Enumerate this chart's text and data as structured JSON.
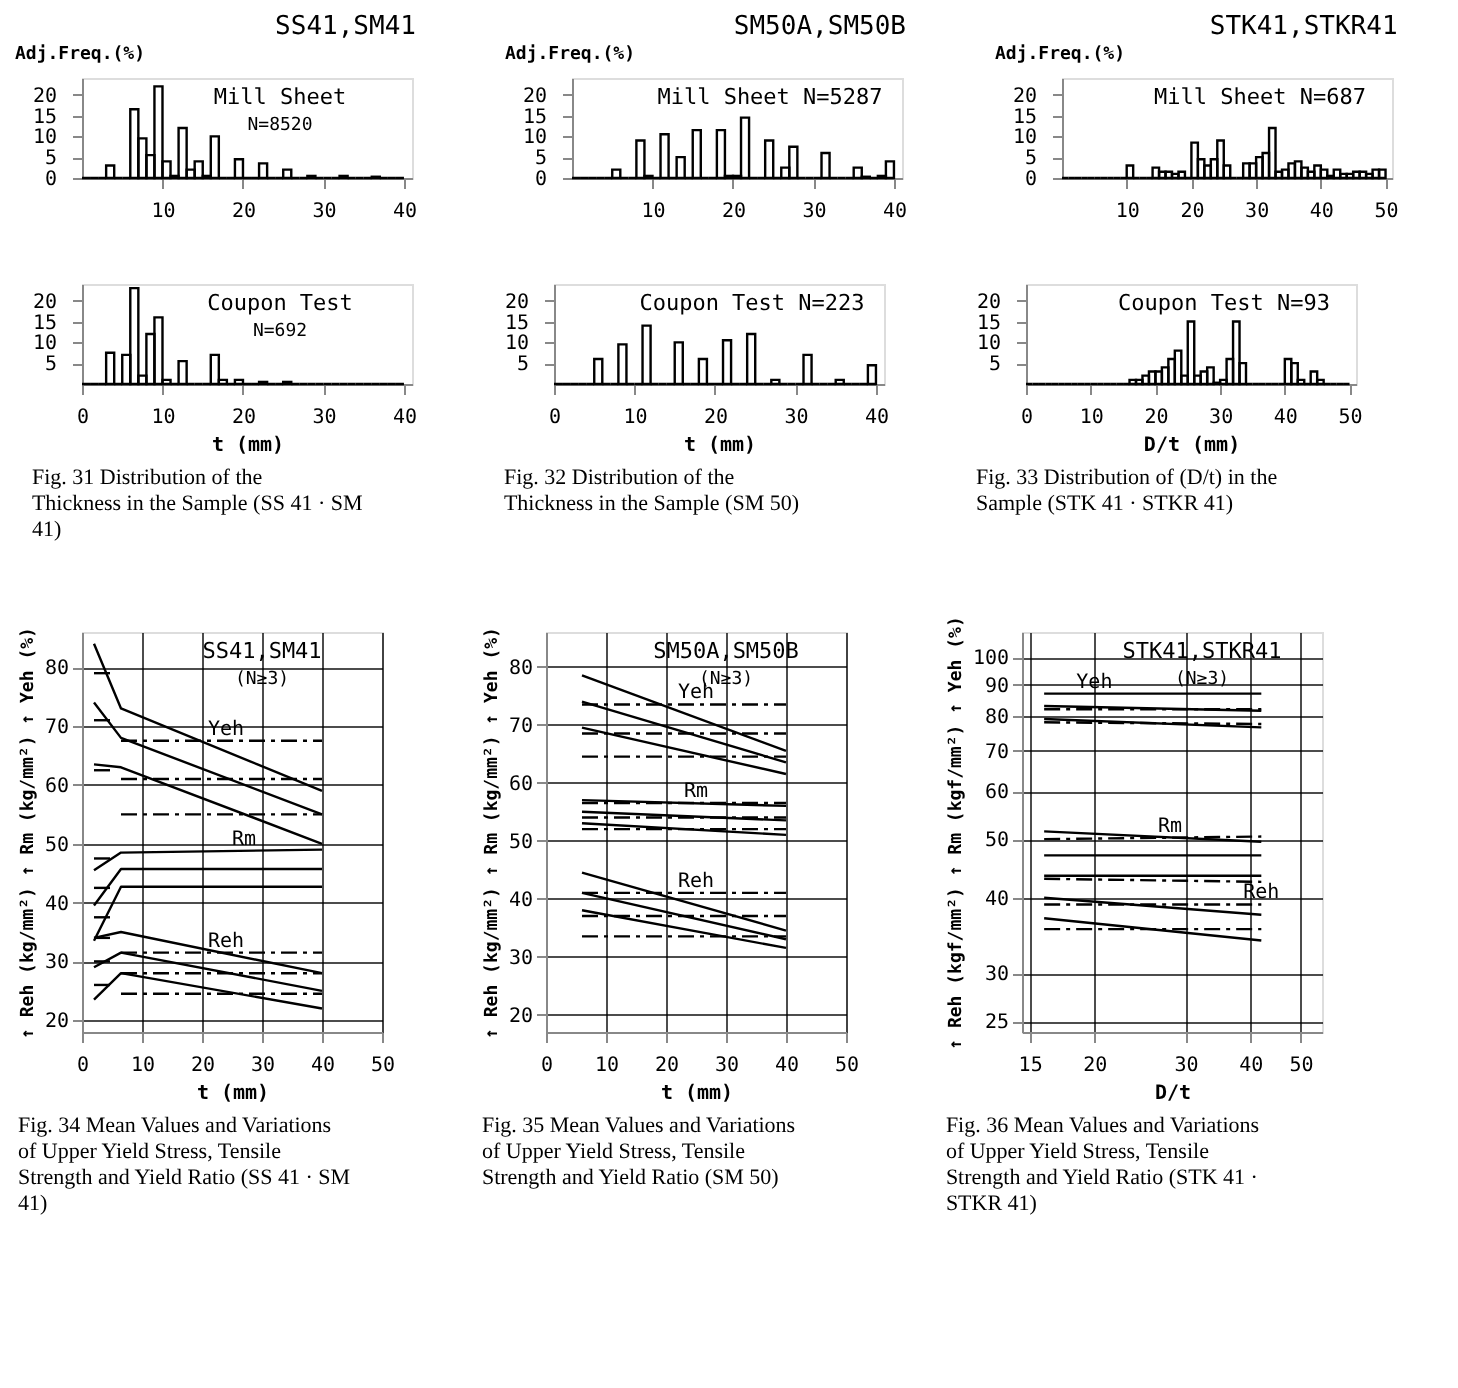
{
  "chart_data": [
    {
      "type": "histogram",
      "title": "SS41,SM41",
      "ylabel": "Adj.Freq.(%)",
      "annotations": [
        "Mill Sheet",
        "N=8520"
      ],
      "bins": [
        0,
        1,
        2,
        3,
        4,
        5,
        6,
        7,
        8,
        9,
        10,
        11,
        12,
        13,
        14,
        15,
        16,
        17,
        18,
        19,
        20,
        21,
        22,
        23,
        24,
        25,
        26,
        27,
        28,
        29,
        30,
        31,
        32,
        33,
        34,
        35,
        36,
        37,
        38,
        39,
        40
      ],
      "values": [
        0,
        0,
        0,
        3,
        0,
        0,
        16.5,
        9.5,
        5.5,
        22,
        4,
        0.5,
        12,
        2,
        4,
        0.5,
        10,
        0,
        0,
        4.5,
        0,
        0,
        3.5,
        0,
        0,
        2,
        0,
        0,
        0.5,
        0,
        0,
        0,
        0.5,
        0,
        0,
        0,
        0.3,
        0,
        0,
        0
      ],
      "color": "#000000",
      "xlim": [
        0,
        41
      ],
      "xticks": [
        10,
        20,
        30,
        40
      ],
      "ylim": [
        0,
        24
      ],
      "yticks": [
        0,
        5,
        10,
        15,
        20
      ],
      "grid": false
    },
    {
      "type": "histogram",
      "title": "SM50A,SM50B",
      "ylabel": "Adj.Freq.(%)",
      "annotations": [
        "Mill Sheet N=5287"
      ],
      "bins": [
        0,
        1,
        2,
        3,
        4,
        5,
        6,
        7,
        8,
        9,
        10,
        11,
        12,
        13,
        14,
        15,
        16,
        17,
        18,
        19,
        20,
        21,
        22,
        23,
        24,
        25,
        26,
        27,
        28,
        29,
        30,
        31,
        32,
        33,
        34,
        35,
        36,
        37,
        38,
        39,
        40
      ],
      "values": [
        0,
        0,
        0,
        0,
        0,
        2,
        0,
        0,
        9,
        0.5,
        0,
        10.5,
        0,
        5,
        0,
        11.5,
        0,
        0,
        11.5,
        0.5,
        0.5,
        14.5,
        0,
        0,
        9,
        0,
        2.5,
        7.5,
        0,
        0,
        0,
        6,
        0,
        0,
        0,
        2.5,
        0.3,
        0,
        0.5,
        4
      ],
      "color": "#000000",
      "xlim": [
        0,
        41
      ],
      "xticks": [
        10,
        20,
        30,
        40
      ],
      "ylim": [
        0,
        24
      ],
      "yticks": [
        0,
        5,
        10,
        15,
        20
      ],
      "grid": false
    },
    {
      "type": "histogram",
      "title": "STK41,STKR41",
      "ylabel": "Adj.Freq.(%)",
      "annotations": [
        "Mill Sheet N=687"
      ],
      "bins": [
        0,
        1,
        2,
        3,
        4,
        5,
        6,
        7,
        8,
        9,
        10,
        11,
        12,
        13,
        14,
        15,
        16,
        17,
        18,
        19,
        20,
        21,
        22,
        23,
        24,
        25,
        26,
        27,
        28,
        29,
        30,
        31,
        32,
        33,
        34,
        35,
        36,
        37,
        38,
        39,
        40,
        41,
        42,
        43,
        44,
        45,
        46,
        47,
        48,
        49,
        50
      ],
      "values": [
        0,
        0,
        0,
        0,
        0,
        0,
        0,
        0,
        0,
        0,
        3,
        0,
        0,
        0,
        2.5,
        1.5,
        1.5,
        1,
        1.5,
        0,
        8.5,
        4.5,
        3,
        4.5,
        9,
        3,
        0,
        0,
        3.5,
        3.5,
        5,
        6,
        12,
        1.5,
        2,
        3.5,
        4,
        2.5,
        1.5,
        3,
        2,
        0.5,
        2,
        1,
        1,
        1.5,
        1.5,
        1,
        2,
        2
      ],
      "color": "#000000",
      "xlim": [
        0,
        51
      ],
      "xticks": [
        10,
        20,
        30,
        40,
        50
      ],
      "ylim": [
        0,
        24
      ],
      "yticks": [
        0,
        5,
        10,
        15,
        20
      ],
      "grid": false
    },
    {
      "type": "histogram",
      "title": "Fig. 31 Distribution of the Thickness in the Sample (SS 41 · SM 41)",
      "xlabel": "t (mm)",
      "annotations": [
        "Coupon Test",
        "N=692"
      ],
      "bins": [
        0,
        1,
        2,
        3,
        4,
        5,
        6,
        7,
        8,
        9,
        10,
        11,
        12,
        13,
        14,
        15,
        16,
        17,
        18,
        19,
        20,
        21,
        22,
        23,
        24,
        25,
        26,
        27,
        28,
        29,
        30,
        31,
        32,
        33,
        34,
        35,
        36,
        37,
        38,
        39,
        40
      ],
      "values": [
        0,
        0,
        0,
        7.5,
        0,
        7,
        23,
        2,
        12,
        16,
        1,
        0,
        5.5,
        0,
        0,
        0,
        7,
        1,
        0,
        1,
        0,
        0,
        0.5,
        0,
        0,
        0.5,
        0,
        0,
        0,
        0,
        0,
        0,
        0,
        0,
        0,
        0,
        0,
        0,
        0,
        0
      ],
      "color": "#000000",
      "xlim": [
        0,
        41
      ],
      "xticks": [
        0,
        10,
        20,
        30,
        40
      ],
      "ylim": [
        0,
        24
      ],
      "yticks": [
        5,
        10,
        15,
        20
      ],
      "grid": false
    },
    {
      "type": "histogram",
      "title": "Fig. 32 Distribution of the Thickness in the Sample (SM 50)",
      "xlabel": "t (mm)",
      "annotations": [
        "Coupon Test N=223"
      ],
      "bins": [
        0,
        1,
        2,
        3,
        4,
        5,
        6,
        7,
        8,
        9,
        10,
        11,
        12,
        13,
        14,
        15,
        16,
        17,
        18,
        19,
        20,
        21,
        22,
        23,
        24,
        25,
        26,
        27,
        28,
        29,
        30,
        31,
        32,
        33,
        34,
        35,
        36,
        37,
        38,
        39,
        40
      ],
      "values": [
        0,
        0,
        0,
        0,
        0,
        6,
        0,
        0,
        9.5,
        0,
        0,
        14,
        0,
        0,
        0,
        10,
        0,
        0,
        6,
        0,
        0,
        10.5,
        0,
        0,
        12,
        0,
        0,
        1,
        0,
        0,
        0,
        7,
        0,
        0,
        0,
        1,
        0,
        0,
        0,
        4.5
      ],
      "color": "#000000",
      "xlim": [
        0,
        41
      ],
      "xticks": [
        0,
        10,
        20,
        30,
        40
      ],
      "ylim": [
        0,
        24
      ],
      "yticks": [
        5,
        10,
        15,
        20
      ],
      "grid": false
    },
    {
      "type": "histogram",
      "title": "Fig. 33 Distribution of (D/t) in the Sample (STK 41 · STKR 41)",
      "xlabel": "D/t (mm)",
      "annotations": [
        "Coupon Test N=93"
      ],
      "bins": [
        0,
        1,
        2,
        3,
        4,
        5,
        6,
        7,
        8,
        9,
        10,
        11,
        12,
        13,
        14,
        15,
        16,
        17,
        18,
        19,
        20,
        21,
        22,
        23,
        24,
        25,
        26,
        27,
        28,
        29,
        30,
        31,
        32,
        33,
        34,
        35,
        36,
        37,
        38,
        39,
        40,
        41,
        42,
        43,
        44,
        45,
        46,
        47,
        48,
        49,
        50
      ],
      "values": [
        0,
        0,
        0,
        0,
        0,
        0,
        0,
        0,
        0,
        0,
        0,
        0,
        0,
        0,
        0,
        0,
        1,
        1,
        2,
        3,
        3,
        4,
        6,
        8,
        2,
        15,
        2,
        3,
        4,
        0.3,
        1,
        6,
        15,
        5,
        0,
        0,
        0,
        0,
        0,
        0,
        6,
        5,
        1,
        0,
        3,
        1,
        0,
        0,
        0,
        0
      ],
      "color": "#000000",
      "xlim": [
        0,
        51
      ],
      "xticks": [
        0,
        10,
        20,
        30,
        40,
        50
      ],
      "ylim": [
        0,
        24
      ],
      "yticks": [
        5,
        10,
        15,
        20
      ],
      "grid": false
    },
    {
      "type": "line",
      "title": "Fig. 34 Mean Values and Variations of Upper Yield Stress, Tensile Strength and Yield Ratio (SS 41 · SM 41)",
      "xlabel": "t (mm)",
      "ylabel": "↑ Reh (kg/mm²)  ↑ Rm (kg/mm²)  ↑ Yeh (%)",
      "annotations": [
        "SS41,SM41",
        "(N≥3)",
        {
          "text": "Yeh",
          "x": 24,
          "y": 67.5
        },
        {
          "text": "Rm",
          "x": 27,
          "y": 48.8
        },
        {
          "text": "Reh",
          "x": 24,
          "y": 31.5
        }
      ],
      "xlim": [
        0,
        50
      ],
      "xticks": [
        0,
        10,
        20,
        30,
        40,
        50
      ],
      "ylim": [
        18,
        86
      ],
      "yticks": [
        20,
        30,
        40,
        50,
        60,
        70,
        80
      ],
      "grid": true,
      "series": [
        {
          "x": [
            2,
            6.5,
            40
          ],
          "values": [
            84,
            73,
            59
          ],
          "color": "#000000",
          "line_style": "solid"
        },
        {
          "x": [
            2,
            6.5,
            40
          ],
          "values": [
            74,
            68,
            55
          ],
          "color": "#000000",
          "line_style": "solid"
        },
        {
          "x": [
            2,
            6.5,
            40
          ],
          "values": [
            63.5,
            63,
            50
          ],
          "color": "#000000",
          "line_style": "solid"
        },
        {
          "x": [
            2,
            5
          ],
          "values": [
            79,
            79
          ],
          "color": "#000000",
          "line_style": "dashed"
        },
        {
          "x": [
            2,
            5
          ],
          "values": [
            71,
            71
          ],
          "color": "#000000",
          "line_style": "dashed"
        },
        {
          "x": [
            2,
            5
          ],
          "values": [
            62.5,
            62.5
          ],
          "color": "#000000",
          "line_style": "dashed"
        },
        {
          "x": [
            6.5,
            40
          ],
          "values": [
            67.5,
            67.5
          ],
          "color": "#000000",
          "line_style": "dashed"
        },
        {
          "x": [
            6.5,
            40
          ],
          "values": [
            61,
            61
          ],
          "color": "#000000",
          "line_style": "dashed"
        },
        {
          "x": [
            6.5,
            40
          ],
          "values": [
            55,
            55
          ],
          "color": "#000000",
          "line_style": "dashed"
        },
        {
          "x": [
            2,
            6.5,
            40
          ],
          "values": [
            45.5,
            48.5,
            49
          ],
          "color": "#000000",
          "line_style": "solid"
        },
        {
          "x": [
            2,
            6.5,
            40
          ],
          "values": [
            39.5,
            45.7,
            45.7
          ],
          "color": "#000000",
          "line_style": "solid"
        },
        {
          "x": [
            2,
            6.5,
            40
          ],
          "values": [
            33.5,
            42.7,
            42.7
          ],
          "color": "#000000",
          "line_style": "solid"
        },
        {
          "x": [
            2,
            5
          ],
          "values": [
            47.5,
            47.5
          ],
          "color": "#000000",
          "line_style": "dashed"
        },
        {
          "x": [
            2,
            5
          ],
          "values": [
            42.5,
            42.5
          ],
          "color": "#000000",
          "line_style": "dashed"
        },
        {
          "x": [
            2,
            5
          ],
          "values": [
            37.5,
            37.5
          ],
          "color": "#000000",
          "line_style": "dashed"
        },
        {
          "x": [
            2,
            6.5,
            40
          ],
          "values": [
            34,
            35,
            28
          ],
          "color": "#000000",
          "line_style": "solid"
        },
        {
          "x": [
            2,
            6.5,
            40
          ],
          "values": [
            29,
            31.5,
            25
          ],
          "color": "#000000",
          "line_style": "solid"
        },
        {
          "x": [
            2,
            6.5,
            40
          ],
          "values": [
            23.5,
            28,
            22
          ],
          "color": "#000000",
          "line_style": "solid"
        },
        {
          "x": [
            2,
            5
          ],
          "values": [
            34,
            34
          ],
          "color": "#000000",
          "line_style": "dashed"
        },
        {
          "x": [
            2,
            5
          ],
          "values": [
            30,
            30
          ],
          "color": "#000000",
          "line_style": "dashed"
        },
        {
          "x": [
            2,
            5
          ],
          "values": [
            26,
            26
          ],
          "color": "#000000",
          "line_style": "dashed"
        },
        {
          "x": [
            6.5,
            40
          ],
          "values": [
            31.5,
            31.5
          ],
          "color": "#000000",
          "line_style": "dashed"
        },
        {
          "x": [
            6.5,
            40
          ],
          "values": [
            28,
            28
          ],
          "color": "#000000",
          "line_style": "dashed"
        },
        {
          "x": [
            6.5,
            40
          ],
          "values": [
            24.5,
            24.5
          ],
          "color": "#000000",
          "line_style": "dashed"
        }
      ]
    },
    {
      "type": "line",
      "title": "Fig. 35 Mean Values and Variations of Upper Yield Stress, Tensile Strength and Yield Ratio (SM 50)",
      "xlabel": "t (mm)",
      "ylabel": "↑ Reh (kg/mm²)  ↑ Rm (kg/mm²)  ↑ Yeh (%)",
      "annotations": [
        "SM50A,SM50B",
        "(N≥3)",
        {
          "text": "Yeh",
          "x": 25,
          "y": 73.5
        },
        {
          "text": "Rm",
          "x": 25,
          "y": 56.5
        },
        {
          "text": "Reh",
          "x": 25,
          "y": 41
        }
      ],
      "xlim": [
        0,
        50
      ],
      "xticks": [
        0,
        10,
        20,
        30,
        40,
        50
      ],
      "ylim": [
        17,
        86
      ],
      "yticks": [
        20,
        30,
        40,
        50,
        60,
        70,
        80
      ],
      "grid": true,
      "series": [
        {
          "x": [
            6,
            40
          ],
          "values": [
            78.5,
            65.5
          ],
          "color": "#000000",
          "line_style": "solid"
        },
        {
          "x": [
            6,
            40
          ],
          "values": [
            74,
            63.5
          ],
          "color": "#000000",
          "line_style": "solid"
        },
        {
          "x": [
            6,
            40
          ],
          "values": [
            69.5,
            61.5
          ],
          "color": "#000000",
          "line_style": "solid"
        },
        {
          "x": [
            6,
            40
          ],
          "values": [
            73.5,
            73.5
          ],
          "color": "#000000",
          "line_style": "dashed"
        },
        {
          "x": [
            6,
            40
          ],
          "values": [
            68.5,
            68.5
          ],
          "color": "#000000",
          "line_style": "dashed"
        },
        {
          "x": [
            6,
            40
          ],
          "values": [
            64.5,
            64.5
          ],
          "color": "#000000",
          "line_style": "dashed"
        },
        {
          "x": [
            6,
            40
          ],
          "values": [
            57,
            56
          ],
          "color": "#000000",
          "line_style": "solid"
        },
        {
          "x": [
            6,
            40
          ],
          "values": [
            55,
            53.5
          ],
          "color": "#000000",
          "line_style": "solid"
        },
        {
          "x": [
            6,
            40
          ],
          "values": [
            53,
            51
          ],
          "color": "#000000",
          "line_style": "solid"
        },
        {
          "x": [
            6,
            40
          ],
          "values": [
            56.5,
            56.5
          ],
          "color": "#000000",
          "line_style": "dashed"
        },
        {
          "x": [
            6,
            40
          ],
          "values": [
            54,
            54
          ],
          "color": "#000000",
          "line_style": "dashed"
        },
        {
          "x": [
            6,
            40
          ],
          "values": [
            52,
            52
          ],
          "color": "#000000",
          "line_style": "dashed"
        },
        {
          "x": [
            6,
            40
          ],
          "values": [
            44.5,
            34.5
          ],
          "color": "#000000",
          "line_style": "solid"
        },
        {
          "x": [
            6,
            40
          ],
          "values": [
            41,
            33
          ],
          "color": "#000000",
          "line_style": "solid"
        },
        {
          "x": [
            6,
            40
          ],
          "values": [
            38,
            31.5
          ],
          "color": "#000000",
          "line_style": "solid"
        },
        {
          "x": [
            6,
            40
          ],
          "values": [
            41,
            41
          ],
          "color": "#000000",
          "line_style": "dashed"
        },
        {
          "x": [
            6,
            40
          ],
          "values": [
            37,
            37
          ],
          "color": "#000000",
          "line_style": "dashed"
        },
        {
          "x": [
            6,
            40
          ],
          "values": [
            33.5,
            33.5
          ],
          "color": "#000000",
          "line_style": "dashed"
        }
      ]
    },
    {
      "type": "line",
      "title": "Fig. 36 Mean Values and Variations of Upper Yield Stress, Tensile Strength and Yield Ratio (STK 41 · STKR 41)",
      "xlabel": "D/t",
      "ylabel": "↑ Reh (kgf/mm²)  ↑ Rm (kgf/mm²)  ↑ Yeh (%)",
      "annotations": [
        "STK41,STKR41",
        "(N≥3)",
        {
          "text": "Yeh",
          "x": 20,
          "y": 87
        },
        {
          "text": "Rm",
          "x": 28,
          "y": 50.3
        },
        {
          "text": "Reh",
          "x": 42,
          "y": 39
        }
      ],
      "log": "xy",
      "xlim": [
        14.5,
        55
      ],
      "xticks": [
        15,
        20,
        30,
        40,
        50
      ],
      "ylim": [
        24,
        110
      ],
      "yticks": [
        25,
        30,
        40,
        50,
        60,
        70,
        80,
        90,
        100
      ],
      "grid": true,
      "series": [
        {
          "x": [
            16,
            42
          ],
          "values": [
            87,
            87
          ],
          "color": "#000000",
          "line_style": "solid"
        },
        {
          "x": [
            16,
            42
          ],
          "values": [
            83,
            81.5
          ],
          "color": "#000000",
          "line_style": "solid"
        },
        {
          "x": [
            16,
            42
          ],
          "values": [
            79,
            76.5
          ],
          "color": "#000000",
          "line_style": "solid"
        },
        {
          "x": [
            16,
            42
          ],
          "values": [
            82,
            82
          ],
          "color": "#000000",
          "line_style": "dashed"
        },
        {
          "x": [
            16,
            42
          ],
          "values": [
            78,
            77.5
          ],
          "color": "#000000",
          "line_style": "dashed"
        },
        {
          "x": [
            16,
            42
          ],
          "values": [
            51.5,
            49.5
          ],
          "color": "#000000",
          "line_style": "solid"
        },
        {
          "x": [
            16,
            42
          ],
          "values": [
            47,
            47
          ],
          "color": "#000000",
          "line_style": "solid"
        },
        {
          "x": [
            16,
            42
          ],
          "values": [
            43.5,
            43.5
          ],
          "color": "#000000",
          "line_style": "solid"
        },
        {
          "x": [
            16,
            42
          ],
          "values": [
            50,
            50.5
          ],
          "color": "#000000",
          "line_style": "dashed"
        },
        {
          "x": [
            16,
            42
          ],
          "values": [
            43,
            42.5
          ],
          "color": "#000000",
          "line_style": "dashed"
        },
        {
          "x": [
            16,
            42
          ],
          "values": [
            40,
            37.5
          ],
          "color": "#000000",
          "line_style": "solid"
        },
        {
          "x": [
            16,
            42
          ],
          "values": [
            37,
            34
          ],
          "color": "#000000",
          "line_style": "solid"
        },
        {
          "x": [
            16,
            42
          ],
          "values": [
            39,
            39
          ],
          "color": "#000000",
          "line_style": "dashed"
        },
        {
          "x": [
            16,
            42
          ],
          "values": [
            35.5,
            35.5
          ],
          "color": "#000000",
          "line_style": "dashed"
        }
      ]
    }
  ]
}
